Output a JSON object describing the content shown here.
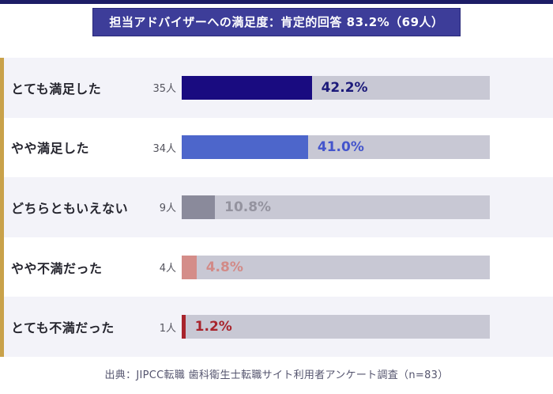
{
  "header": {
    "title": "担当アドバイザーへの満足度：肯定的回答 83.2%（69人）",
    "bg_color": "#3d3d99",
    "top_border_color": "#1d1d66"
  },
  "chart_data": {
    "type": "bar",
    "orientation": "horizontal",
    "title": "担当アドバイザーへの満足度：肯定的回答 83.2%（69人）",
    "categories": [
      "とても満足した",
      "やや満足した",
      "どちらともいえない",
      "やや不満だった",
      "とても不満だった"
    ],
    "counts": [
      "35人",
      "34人",
      "9人",
      "4人",
      "1人"
    ],
    "values": [
      42.2,
      41.0,
      10.8,
      4.8,
      1.2
    ],
    "value_labels": [
      "42.2%",
      "41.0%",
      "10.8%",
      "4.8%",
      "1.2%"
    ],
    "bar_colors": [
      "#190b80",
      "#4d66cb",
      "#8a8a9b",
      "#d48d89",
      "#a8242c"
    ],
    "value_label_colors": [
      "#1c1a7a",
      "#4455cc",
      "#94939f",
      "#d28a87",
      "#a8242c"
    ],
    "track_color": "#c8c8d4",
    "accent_stripe_color": "#c9a24a",
    "row_alt_bg": "#f3f3f9",
    "xlim": [
      0,
      100
    ],
    "grid": false,
    "legend": "none"
  },
  "footer": {
    "source": "出典：JIPCC転職 歯科衛生士転職サイト利用者アンケート調査（n=83）"
  }
}
